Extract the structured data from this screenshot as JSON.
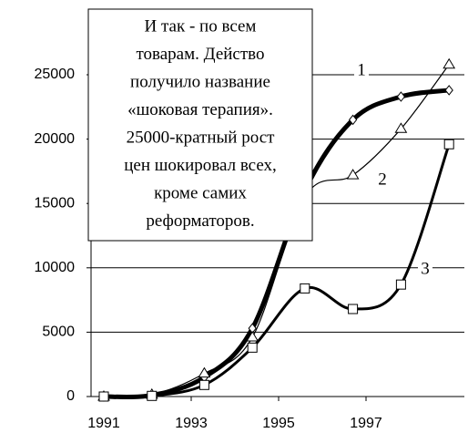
{
  "chart_data": {
    "type": "line",
    "annotation": [
      "И так - по всем",
      "товарам. Действо",
      "получило название",
      "«шоковая терапия».",
      "25000-кратный рост",
      "цен шокировал всех,",
      "кроме  самих",
      "реформаторов."
    ],
    "x": [
      1991,
      1992.1,
      1993.3,
      1994.4,
      1995.6,
      1996.7,
      1997.8,
      1998.9
    ],
    "series": [
      {
        "name": "1",
        "color": "#000000",
        "marker": "diamond",
        "values": [
          0,
          100,
          1500,
          5300,
          16000,
          21500,
          23300,
          23800
        ]
      },
      {
        "name": "2",
        "color": "#000000",
        "marker": "triangle",
        "values": [
          0,
          150,
          1800,
          4600,
          15500,
          17200,
          20800,
          25800
        ]
      },
      {
        "name": "3",
        "color": "#000000",
        "marker": "square",
        "values": [
          0,
          50,
          900,
          3800,
          8400,
          6800,
          8700,
          19600
        ]
      }
    ],
    "xlim": [
      1990.7,
      1999.2
    ],
    "xticks": [
      1991,
      1993,
      1995,
      1997
    ],
    "ylim": [
      0,
      25000
    ],
    "yticks": [
      0,
      5000,
      10000,
      15000,
      20000,
      25000
    ],
    "grid": true
  }
}
